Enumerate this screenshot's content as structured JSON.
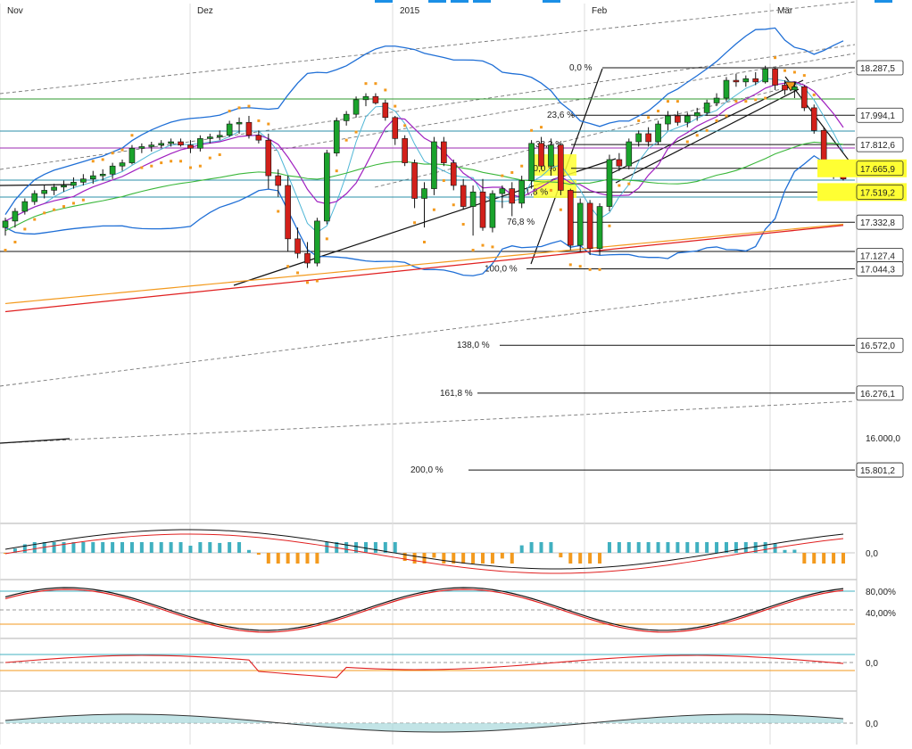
{
  "chart_data": {
    "type": "candlestick",
    "x_labels": [
      "Nov",
      "Dez",
      "2015",
      "Feb",
      "Mär"
    ],
    "y_range": [
      15600,
      18600
    ],
    "price_levels": [
      {
        "label": "18.287,5",
        "value": 18287.5,
        "highlight": false
      },
      {
        "label": "17.994,1",
        "value": 17994.1,
        "highlight": false
      },
      {
        "label": "17.812,6",
        "value": 17812.6,
        "highlight": false
      },
      {
        "label": "17.665,9",
        "value": 17665.9,
        "highlight": true
      },
      {
        "label": "17.519,2",
        "value": 17519.2,
        "highlight": true
      },
      {
        "label": "17.332,8",
        "value": 17332.8,
        "highlight": false
      },
      {
        "label": "17.127,4",
        "value": 17127.4,
        "highlight": false
      },
      {
        "label": "17.044,3",
        "value": 17044.3,
        "highlight": false
      },
      {
        "label": "16.572,0",
        "value": 16572.0,
        "highlight": false
      },
      {
        "label": "16.276,1",
        "value": 16276.1,
        "highlight": false
      },
      {
        "label": "16.000,0",
        "value": 16000.0,
        "highlight": false
      },
      {
        "label": "15.801,2",
        "value": 15801.2,
        "highlight": false
      }
    ],
    "fibonacci": [
      {
        "label": "0,0 %",
        "value": 18287.5
      },
      {
        "label": "23,6 %",
        "value": 17994.1
      },
      {
        "label": "38,2 %",
        "value": 17812.6
      },
      {
        "label": "50,0 %",
        "value": 17665.9
      },
      {
        "label": "61,8 %",
        "value": 17519.2
      },
      {
        "label": "76,8 %",
        "value": 17332.8
      },
      {
        "label": "100,0 %",
        "value": 17044.3
      },
      {
        "label": "138,0 %",
        "value": 16572.0
      },
      {
        "label": "161,8 %",
        "value": 16276.1
      },
      {
        "label": "200,0 %",
        "value": 15801.2
      }
    ],
    "candles": [
      [
        17300,
        17360,
        17250,
        17340
      ],
      [
        17340,
        17420,
        17300,
        17400
      ],
      [
        17400,
        17480,
        17380,
        17460
      ],
      [
        17460,
        17530,
        17440,
        17510
      ],
      [
        17510,
        17560,
        17480,
        17530
      ],
      [
        17530,
        17570,
        17500,
        17550
      ],
      [
        17550,
        17590,
        17520,
        17560
      ],
      [
        17560,
        17610,
        17540,
        17580
      ],
      [
        17580,
        17630,
        17560,
        17600
      ],
      [
        17600,
        17650,
        17570,
        17620
      ],
      [
        17620,
        17660,
        17590,
        17630
      ],
      [
        17630,
        17700,
        17600,
        17680
      ],
      [
        17680,
        17720,
        17650,
        17700
      ],
      [
        17700,
        17810,
        17690,
        17790
      ],
      [
        17790,
        17820,
        17760,
        17800
      ],
      [
        17800,
        17830,
        17770,
        17810
      ],
      [
        17810,
        17840,
        17790,
        17820
      ],
      [
        17820,
        17850,
        17800,
        17830
      ],
      [
        17830,
        17850,
        17800,
        17810
      ],
      [
        17810,
        17840,
        17760,
        17790
      ],
      [
        17790,
        17870,
        17770,
        17850
      ],
      [
        17850,
        17880,
        17820,
        17860
      ],
      [
        17860,
        17900,
        17840,
        17870
      ],
      [
        17870,
        17960,
        17860,
        17940
      ],
      [
        17940,
        17980,
        17880,
        17950
      ],
      [
        17950,
        17990,
        17850,
        17870
      ],
      [
        17870,
        17900,
        17820,
        17840
      ],
      [
        17840,
        17880,
        17540,
        17620
      ],
      [
        17620,
        17660,
        17490,
        17560
      ],
      [
        17560,
        17620,
        17150,
        17230
      ],
      [
        17230,
        17300,
        17110,
        17140
      ],
      [
        17140,
        17210,
        17050,
        17080
      ],
      [
        17080,
        17360,
        17060,
        17340
      ],
      [
        17340,
        17780,
        17320,
        17760
      ],
      [
        17760,
        17980,
        17740,
        17960
      ],
      [
        17960,
        18020,
        17930,
        18000
      ],
      [
        18000,
        18110,
        17980,
        18090
      ],
      [
        18090,
        18130,
        18050,
        18110
      ],
      [
        18110,
        18130,
        18060,
        18070
      ],
      [
        18070,
        18090,
        17960,
        17980
      ],
      [
        17980,
        17990,
        17810,
        17850
      ],
      [
        17850,
        17870,
        17680,
        17700
      ],
      [
        17700,
        17720,
        17420,
        17480
      ],
      [
        17480,
        17580,
        17300,
        17540
      ],
      [
        17540,
        17860,
        17500,
        17830
      ],
      [
        17830,
        17860,
        17680,
        17700
      ],
      [
        17700,
        17720,
        17530,
        17560
      ],
      [
        17560,
        17600,
        17410,
        17430
      ],
      [
        17430,
        17560,
        17250,
        17520
      ],
      [
        17520,
        17600,
        17280,
        17300
      ],
      [
        17300,
        17530,
        17270,
        17510
      ],
      [
        17510,
        17560,
        17420,
        17540
      ],
      [
        17540,
        17580,
        17370,
        17450
      ],
      [
        17450,
        17620,
        17420,
        17590
      ],
      [
        17590,
        17840,
        17540,
        17820
      ],
      [
        17820,
        17860,
        17660,
        17680
      ],
      [
        17680,
        17850,
        17620,
        17810
      ],
      [
        17810,
        17820,
        17500,
        17530
      ],
      [
        17530,
        17540,
        17160,
        17190
      ],
      [
        17190,
        17480,
        17150,
        17450
      ],
      [
        17450,
        17470,
        17130,
        17170
      ],
      [
        17170,
        17450,
        17130,
        17430
      ],
      [
        17430,
        17750,
        17400,
        17720
      ],
      [
        17720,
        17760,
        17650,
        17680
      ],
      [
        17680,
        17850,
        17660,
        17830
      ],
      [
        17830,
        17900,
        17800,
        17880
      ],
      [
        17880,
        17920,
        17800,
        17830
      ],
      [
        17830,
        17960,
        17810,
        17940
      ],
      [
        17940,
        18020,
        17900,
        17990
      ],
      [
        17990,
        18020,
        17930,
        17950
      ],
      [
        17950,
        18010,
        17920,
        17990
      ],
      [
        17990,
        18040,
        17960,
        18010
      ],
      [
        18010,
        18090,
        17990,
        18070
      ],
      [
        18070,
        18130,
        18050,
        18100
      ],
      [
        18100,
        18230,
        18080,
        18210
      ],
      [
        18210,
        18250,
        18170,
        18200
      ],
      [
        18200,
        18240,
        18170,
        18220
      ],
      [
        18220,
        18260,
        18180,
        18200
      ],
      [
        18200,
        18300,
        18190,
        18280
      ],
      [
        18280,
        18290,
        18150,
        18180
      ],
      [
        18180,
        18210,
        18120,
        18150
      ],
      [
        18150,
        18200,
        18100,
        18170
      ],
      [
        18170,
        18180,
        18020,
        18040
      ],
      [
        18040,
        18060,
        17880,
        17900
      ],
      [
        17900,
        17920,
        17640,
        17680
      ],
      [
        17680,
        17700,
        17600,
        17630
      ],
      [
        17630,
        17650,
        17590,
        17600
      ]
    ],
    "indicators": [
      {
        "name": "oscillator-1",
        "zero_label": "0,0"
      },
      {
        "name": "stochastic",
        "levels": [
          "80,00%",
          "40,00%"
        ]
      },
      {
        "name": "oscillator-3",
        "zero_label": "0,0"
      },
      {
        "name": "oscillator-4",
        "zero_label": "0,0"
      }
    ],
    "colors": {
      "up": "#1aa32c",
      "down": "#d2201a",
      "bollinger": "#1f6fd6",
      "sma_green": "#3bb73b",
      "sma_purple": "#a020c0",
      "sma_red": "#e02020",
      "sma_orange": "#f39a1e",
      "sar": "#f39a1e",
      "highlight": "#ffff33"
    }
  }
}
